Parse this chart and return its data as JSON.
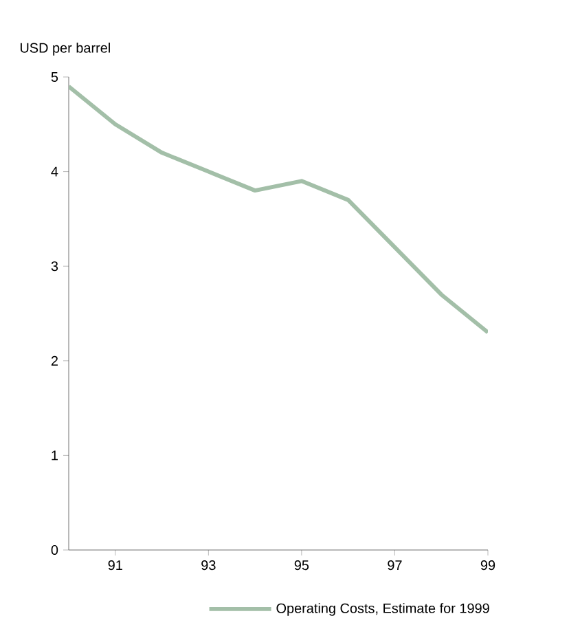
{
  "chart_data": {
    "type": "line",
    "ylabel": "USD per barrel",
    "x": [
      90,
      91,
      92,
      93,
      94,
      95,
      96,
      97,
      98,
      99
    ],
    "series": [
      {
        "name": "Operating Costs, Estimate for 1999",
        "color": "#a3bfa8",
        "values": [
          4.9,
          4.5,
          4.2,
          4.0,
          3.8,
          3.9,
          3.7,
          3.2,
          2.7,
          2.3
        ]
      }
    ],
    "xlim": [
      90,
      99
    ],
    "xticks": [
      91,
      93,
      95,
      97,
      99
    ],
    "ylim": [
      0,
      5
    ],
    "yticks": [
      0,
      1,
      2,
      3,
      4,
      5
    ],
    "legend": "bottom",
    "grid": false,
    "marker": "none",
    "line_style": "solid"
  }
}
